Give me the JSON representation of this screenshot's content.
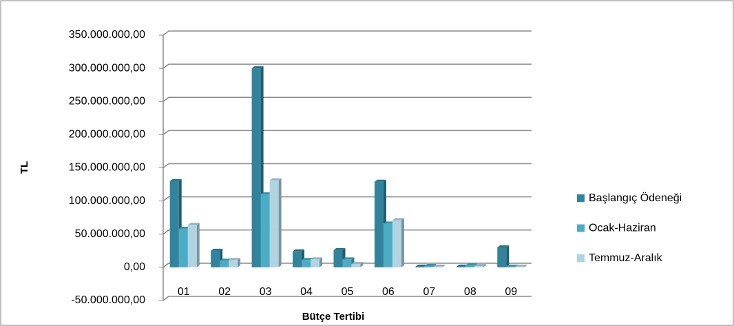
{
  "chart_data": {
    "type": "bar",
    "x_label": "Bütçe Tertibi",
    "y_label": "TL",
    "categories": [
      "01",
      "02",
      "03",
      "04",
      "05",
      "06",
      "07",
      "08",
      "09"
    ],
    "series": [
      {
        "name": "Başlangıç Ödeneği",
        "color": "#31849b",
        "values": [
          130000000,
          25000000,
          300000000,
          24000000,
          26000000,
          129000000,
          1000000,
          1000000,
          30000000
        ]
      },
      {
        "name": "Ocak-Haziran",
        "color": "#4bacc6",
        "values": [
          58000000,
          10000000,
          110000000,
          11000000,
          12000000,
          66000000,
          2000000,
          3000000,
          1000000
        ]
      },
      {
        "name": "Temmuz-Aralık",
        "color": "#b0d4e2",
        "values": [
          64000000,
          11000000,
          131000000,
          12000000,
          5000000,
          71000000,
          1000000,
          2000000,
          1000000
        ]
      }
    ],
    "ylim": [
      -50000000,
      350000000
    ],
    "yticks": [
      {
        "value": -50000000,
        "label": "-50.000.000,00"
      },
      {
        "value": 0,
        "label": "0,00"
      },
      {
        "value": 50000000,
        "label": "50.000.000,00"
      },
      {
        "value": 100000000,
        "label": "100.000.000,00"
      },
      {
        "value": 150000000,
        "label": "150.000.000,00"
      },
      {
        "value": 200000000,
        "label": "200.000.000,00"
      },
      {
        "value": 250000000,
        "label": "250.000.000,00"
      },
      {
        "value": 300000000,
        "label": "300.000.000,00"
      },
      {
        "value": 350000000,
        "label": "350.000.000,00"
      }
    ],
    "grid": true,
    "legend": "right"
  }
}
